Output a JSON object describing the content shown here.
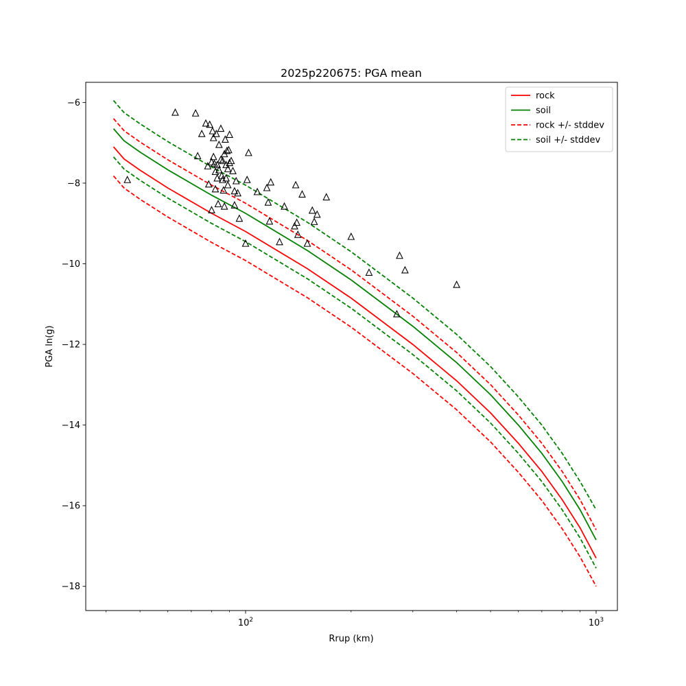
{
  "chart_data": {
    "type": "line",
    "title": "2025p220675: PGA mean",
    "xlabel": "Rrup (km)",
    "ylabel": "PGA ln(g)",
    "x_scale": "log",
    "xlim": [
      35,
      1150
    ],
    "ylim": [
      -18.6,
      -5.5
    ],
    "grid": false,
    "legend_position": "top-right",
    "x_ticks": [
      {
        "value": 100,
        "base": "10",
        "exp": "2"
      },
      {
        "value": 1000,
        "base": "10",
        "exp": "3"
      }
    ],
    "x_minor_ticks": [
      40,
      50,
      60,
      70,
      80,
      90,
      200,
      300,
      400,
      500,
      600,
      700,
      800,
      900
    ],
    "y_ticks": [
      {
        "value": -6,
        "label": "−6"
      },
      {
        "value": -8,
        "label": "−8"
      },
      {
        "value": -10,
        "label": "−10"
      },
      {
        "value": -12,
        "label": "−12"
      },
      {
        "value": -14,
        "label": "−14"
      },
      {
        "value": -16,
        "label": "−16"
      },
      {
        "value": -18,
        "label": "−18"
      }
    ],
    "series": [
      {
        "name": "rock",
        "color": "#ff0000",
        "dash": "solid",
        "x": [
          42,
          45,
          50,
          60,
          80,
          100,
          150,
          200,
          300,
          400,
          500,
          600,
          700,
          800,
          900,
          1000
        ],
        "y": [
          -7.1,
          -7.4,
          -7.68,
          -8.12,
          -8.75,
          -9.2,
          -10.12,
          -10.85,
          -12.0,
          -12.9,
          -13.7,
          -14.45,
          -15.15,
          -15.85,
          -16.55,
          -17.3
        ]
      },
      {
        "name": "soil",
        "color": "#008000",
        "dash": "solid",
        "x": [
          42,
          45,
          50,
          60,
          80,
          100,
          150,
          200,
          300,
          400,
          500,
          600,
          700,
          800,
          900,
          1000
        ],
        "y": [
          -6.65,
          -6.95,
          -7.23,
          -7.67,
          -8.3,
          -8.75,
          -9.67,
          -10.4,
          -11.55,
          -12.45,
          -13.25,
          -14.0,
          -14.7,
          -15.4,
          -16.1,
          -16.85
        ]
      },
      {
        "name": "rock +/- stddev",
        "color": "#ff0000",
        "dash": "dashed",
        "x": [
          42,
          45,
          50,
          60,
          80,
          100,
          150,
          200,
          300,
          400,
          500,
          600,
          700,
          800,
          900,
          1000
        ],
        "y": [
          -6.4,
          -6.7,
          -6.98,
          -7.42,
          -8.05,
          -8.5,
          -9.42,
          -10.15,
          -11.3,
          -12.2,
          -13.0,
          -13.75,
          -14.45,
          -15.15,
          -15.85,
          -16.6
        ]
      },
      {
        "name": "",
        "color": "#ff0000",
        "dash": "dashed",
        "x": [
          42,
          45,
          50,
          60,
          80,
          100,
          150,
          200,
          300,
          400,
          500,
          600,
          700,
          800,
          900,
          1000
        ],
        "y": [
          -7.82,
          -8.12,
          -8.4,
          -8.84,
          -9.47,
          -9.92,
          -10.84,
          -11.57,
          -12.72,
          -13.62,
          -14.42,
          -15.17,
          -15.87,
          -16.57,
          -17.27,
          -18.0
        ]
      },
      {
        "name": "soil +/- stddev",
        "color": "#008000",
        "dash": "dashed",
        "x": [
          42,
          45,
          50,
          60,
          80,
          100,
          150,
          200,
          300,
          400,
          500,
          600,
          700,
          800,
          900,
          1000
        ],
        "y": [
          -5.95,
          -6.25,
          -6.53,
          -6.97,
          -7.6,
          -8.05,
          -8.97,
          -9.7,
          -10.85,
          -11.75,
          -12.55,
          -13.3,
          -14.0,
          -14.7,
          -15.4,
          -16.1
        ]
      },
      {
        "name": "",
        "color": "#008000",
        "dash": "dashed",
        "x": [
          42,
          45,
          50,
          60,
          80,
          100,
          150,
          200,
          300,
          400,
          500,
          600,
          700,
          800,
          900,
          1000
        ],
        "y": [
          -7.35,
          -7.65,
          -7.93,
          -8.37,
          -9.0,
          -9.45,
          -10.37,
          -11.1,
          -12.25,
          -13.15,
          -13.95,
          -14.7,
          -15.4,
          -16.1,
          -16.8,
          -17.55
        ]
      }
    ],
    "observations": {
      "marker": "triangle",
      "x": [
        46,
        63,
        72,
        73,
        75,
        77,
        78,
        78.5,
        79,
        80,
        80,
        80.5,
        81,
        81,
        81.5,
        82,
        82,
        82.5,
        83,
        83,
        83.5,
        84,
        84,
        85,
        85,
        85.5,
        86,
        86,
        86.5,
        87,
        87,
        87.5,
        88,
        88,
        88.5,
        89,
        89,
        89.5,
        90,
        90,
        91,
        92,
        93,
        93,
        94,
        95,
        96,
        100,
        101,
        102,
        108,
        115,
        116,
        117,
        118,
        125,
        129,
        138,
        139,
        140,
        141,
        145,
        150,
        155,
        157,
        160,
        170,
        200,
        225,
        270,
        275,
        285,
        400
      ],
      "y": [
        -7.92,
        -6.25,
        -6.27,
        -7.33,
        -6.78,
        -6.52,
        -7.58,
        -8.03,
        -6.55,
        -7.48,
        -8.67,
        -6.71,
        -6.88,
        -7.35,
        -7.52,
        -7.72,
        -8.15,
        -6.78,
        -7.55,
        -7.88,
        -8.52,
        -7.05,
        -7.68,
        -6.65,
        -7.42,
        -7.82,
        -7.45,
        -7.92,
        -8.18,
        -8.58,
        -7.28,
        -6.92,
        -7.55,
        -7.88,
        -7.2,
        -7.65,
        -8.05,
        -7.18,
        -7.5,
        -6.8,
        -7.45,
        -7.7,
        -8.2,
        -8.55,
        -7.95,
        -8.25,
        -8.88,
        -9.5,
        -7.92,
        -7.25,
        -8.22,
        -8.12,
        -8.48,
        -8.95,
        -7.98,
        -9.46,
        -8.58,
        -9.07,
        -8.05,
        -8.98,
        -9.28,
        -8.28,
        -9.5,
        -8.68,
        -8.96,
        -8.78,
        -8.35,
        -9.33,
        -10.22,
        -11.25,
        -9.8,
        -10.16,
        -10.52
      ]
    }
  }
}
